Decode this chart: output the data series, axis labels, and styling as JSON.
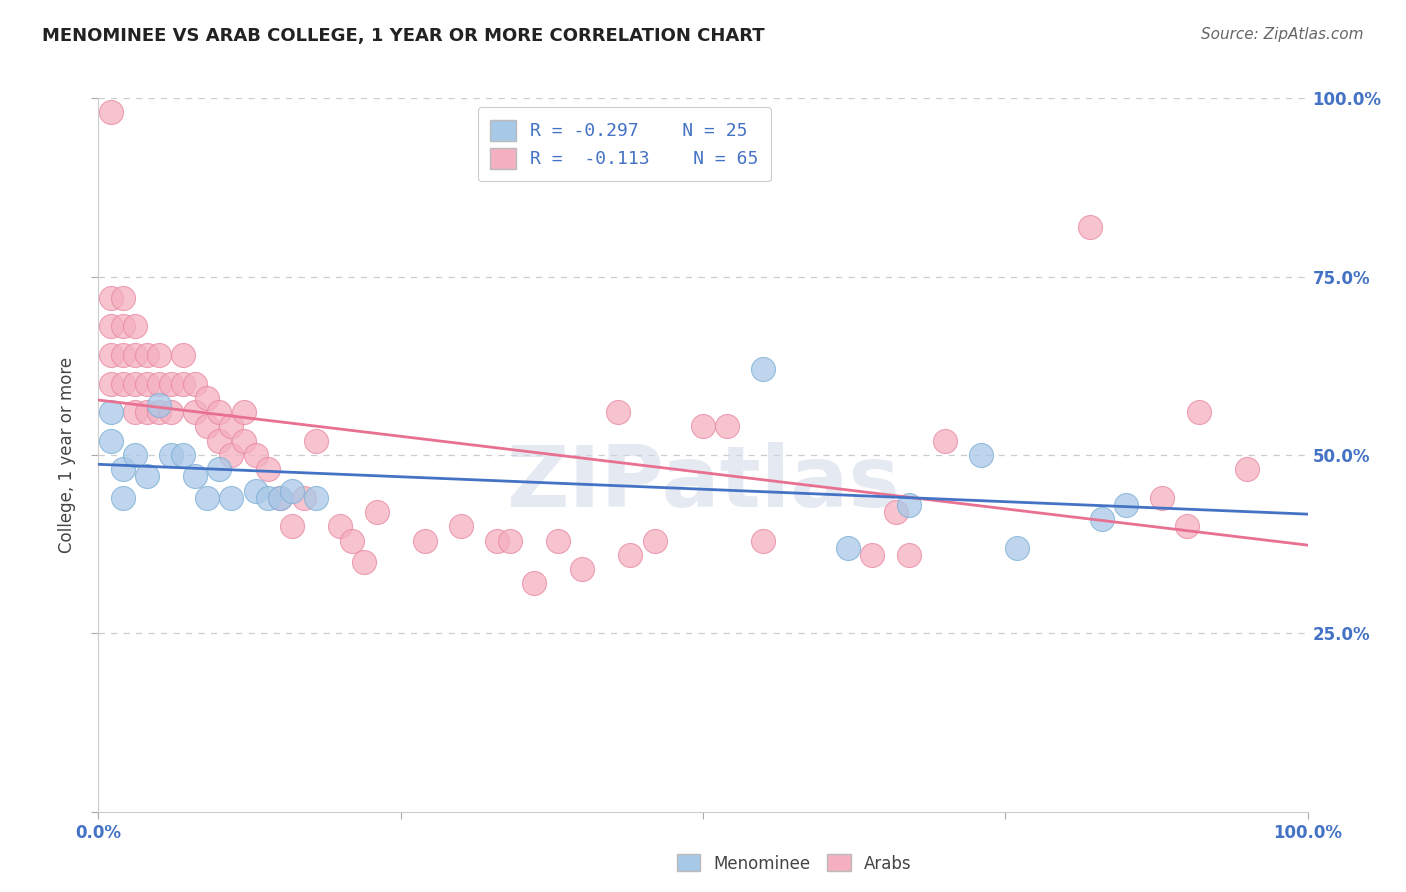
{
  "title": "MENOMINEE VS ARAB COLLEGE, 1 YEAR OR MORE CORRELATION CHART",
  "ylabel": "College, 1 year or more",
  "source_text": "Source: ZipAtlas.com",
  "xlim": [
    0.0,
    1.0
  ],
  "ylim": [
    0.0,
    1.0
  ],
  "menominee_color": "#a8c8e8",
  "menominee_edge_color": "#7bafd4",
  "arab_color": "#f4afc0",
  "arab_edge_color": "#e888a0",
  "menominee_line_color": "#4472c4",
  "arab_line_color": "#e87090",
  "legend_R_menominee": "R = -0.297",
  "legend_N_menominee": "N = 25",
  "legend_R_arab": "R =  -0.113",
  "legend_N_arab": "N = 65",
  "watermark": "ZIPatlas",
  "menominee_x": [
    0.01,
    0.01,
    0.02,
    0.02,
    0.03,
    0.04,
    0.05,
    0.06,
    0.07,
    0.08,
    0.09,
    0.1,
    0.11,
    0.13,
    0.14,
    0.15,
    0.16,
    0.18,
    0.55,
    0.62,
    0.67,
    0.73,
    0.76,
    0.83,
    0.85
  ],
  "menominee_y": [
    0.56,
    0.52,
    0.48,
    0.44,
    0.5,
    0.47,
    0.57,
    0.5,
    0.5,
    0.47,
    0.44,
    0.48,
    0.44,
    0.45,
    0.44,
    0.44,
    0.45,
    0.44,
    0.62,
    0.37,
    0.43,
    0.5,
    0.37,
    0.41,
    0.43
  ],
  "arab_x": [
    0.01,
    0.01,
    0.01,
    0.01,
    0.01,
    0.02,
    0.02,
    0.02,
    0.02,
    0.03,
    0.03,
    0.03,
    0.03,
    0.04,
    0.04,
    0.04,
    0.05,
    0.05,
    0.05,
    0.06,
    0.06,
    0.07,
    0.07,
    0.08,
    0.08,
    0.09,
    0.09,
    0.1,
    0.1,
    0.11,
    0.11,
    0.12,
    0.12,
    0.13,
    0.14,
    0.15,
    0.16,
    0.17,
    0.18,
    0.2,
    0.21,
    0.22,
    0.23,
    0.27,
    0.3,
    0.33,
    0.34,
    0.36,
    0.38,
    0.4,
    0.43,
    0.44,
    0.46,
    0.5,
    0.52,
    0.55,
    0.64,
    0.66,
    0.67,
    0.7,
    0.82,
    0.88,
    0.9,
    0.91,
    0.95
  ],
  "arab_y": [
    0.98,
    0.72,
    0.68,
    0.64,
    0.6,
    0.72,
    0.68,
    0.64,
    0.6,
    0.68,
    0.64,
    0.6,
    0.56,
    0.64,
    0.6,
    0.56,
    0.64,
    0.6,
    0.56,
    0.6,
    0.56,
    0.64,
    0.6,
    0.6,
    0.56,
    0.58,
    0.54,
    0.56,
    0.52,
    0.54,
    0.5,
    0.56,
    0.52,
    0.5,
    0.48,
    0.44,
    0.4,
    0.44,
    0.52,
    0.4,
    0.38,
    0.35,
    0.42,
    0.38,
    0.4,
    0.38,
    0.38,
    0.32,
    0.38,
    0.34,
    0.56,
    0.36,
    0.38,
    0.54,
    0.54,
    0.38,
    0.36,
    0.42,
    0.36,
    0.52,
    0.82,
    0.44,
    0.4,
    0.56,
    0.48
  ]
}
